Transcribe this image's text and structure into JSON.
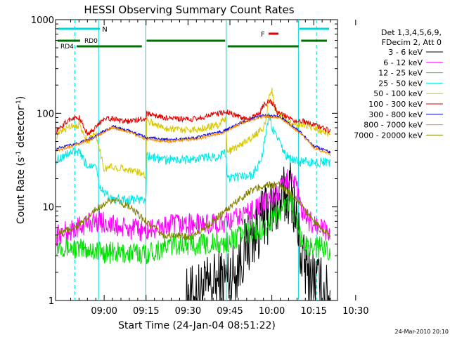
{
  "chart_data": {
    "type": "line",
    "title": "HESSI Observing Summary Count Rates",
    "xlabel": "Start Time (24-Jan-04 08:51:22)",
    "ylabel_main": "Count Rate (s",
    "ylabel_sup1": "-1",
    "ylabel_mid": " detector",
    "ylabel_sup2": "-1",
    "ylabel_end": ")",
    "y_scale": "log",
    "ylim": [
      1,
      1000
    ],
    "xlim_minutes": [
      -8.4,
      92.5
    ],
    "x_ticks": [
      {
        "minutes": 9,
        "label": "09:00"
      },
      {
        "minutes": 24,
        "label": "09:15"
      },
      {
        "minutes": 39,
        "label": "09:30"
      },
      {
        "minutes": 54,
        "label": "09:45"
      },
      {
        "minutes": 69,
        "label": "10:00"
      },
      {
        "minutes": 84,
        "label": "10:15"
      },
      {
        "minutes": 99,
        "label": "10:30"
      }
    ],
    "y_ticks": [
      {
        "value": 1,
        "label": "1"
      },
      {
        "value": 10,
        "label": "10"
      },
      {
        "value": 100,
        "label": "100"
      },
      {
        "value": 1000,
        "label": "1000"
      }
    ],
    "legend_header": [
      "Det 1,3,4,5,6,9,",
      "FDecim 2, Att 0"
    ],
    "legend_position": "right",
    "timestamp": "24-Mar-2010 20:10",
    "flags": [
      {
        "label": "N",
        "color": "#00d8d8"
      },
      {
        "label": "F",
        "color": "#e00000"
      },
      {
        "label": "RD0",
        "color": "#007000"
      },
      {
        "label": "RD4",
        "color": "#007000"
      }
    ],
    "series": [
      {
        "name": "3 - 6 keV",
        "color": "#000000"
      },
      {
        "name": "6 - 12 keV",
        "color": "#ff00ff"
      },
      {
        "name": "12 - 25 keV",
        "color": "#00e000"
      },
      {
        "name": "25 - 50 keV",
        "color": "#00e8e8"
      },
      {
        "name": "50 - 100 keV",
        "color": "#d8c800"
      },
      {
        "name": "100 - 300 keV",
        "color": "#e00000"
      },
      {
        "name": "300 - 800 keV",
        "color": "#0000e0"
      },
      {
        "name": "800 - 7000 keV",
        "color": "#ff8c00"
      },
      {
        "name": "7000 - 20000 keV",
        "color": "#808000"
      }
    ],
    "night_intervals_minutes": [
      [
        7.0,
        23.9
      ],
      [
        52.7,
        78.5
      ]
    ],
    "series_key_points": {
      "100 - 300 keV": [
        [
          -8,
          65
        ],
        [
          -3,
          88
        ],
        [
          0,
          90
        ],
        [
          3,
          60
        ],
        [
          6,
          70
        ],
        [
          9,
          90
        ],
        [
          18,
          82
        ],
        [
          24,
          88
        ],
        [
          24.2,
          100
        ],
        [
          30,
          90
        ],
        [
          40,
          85
        ],
        [
          50,
          100
        ],
        [
          52.5,
          105
        ],
        [
          60,
          85
        ],
        [
          64,
          95
        ],
        [
          66,
          120
        ],
        [
          68,
          135
        ],
        [
          70,
          120
        ],
        [
          71,
          100
        ],
        [
          73,
          95
        ],
        [
          75,
          90
        ],
        [
          78.3,
          80
        ],
        [
          80,
          83
        ],
        [
          90,
          65
        ]
      ],
      "50 - 100 keV": [
        [
          -8,
          58
        ],
        [
          -3,
          74
        ],
        [
          0,
          75
        ],
        [
          3,
          50
        ],
        [
          6,
          62
        ],
        [
          9,
          25
        ],
        [
          11,
          27
        ],
        [
          18,
          25
        ],
        [
          24,
          22
        ],
        [
          24.2,
          85
        ],
        [
          30,
          70
        ],
        [
          40,
          66
        ],
        [
          50,
          75
        ],
        [
          52.5,
          90
        ],
        [
          53,
          38
        ],
        [
          62,
          55
        ],
        [
          66,
          70
        ],
        [
          67,
          90
        ],
        [
          68,
          145
        ],
        [
          69,
          180
        ],
        [
          70,
          110
        ],
        [
          74,
          85
        ],
        [
          78.3,
          75
        ],
        [
          80,
          78
        ],
        [
          90,
          58
        ]
      ],
      "25 - 50 keV": [
        [
          -8,
          32
        ],
        [
          -3,
          38
        ],
        [
          0,
          38
        ],
        [
          3,
          27
        ],
        [
          6,
          30
        ],
        [
          7,
          18
        ],
        [
          9,
          14
        ],
        [
          12,
          12
        ],
        [
          18,
          12
        ],
        [
          24,
          12
        ],
        [
          24.2,
          35
        ],
        [
          30,
          32
        ],
        [
          40,
          32
        ],
        [
          50,
          35
        ],
        [
          52.5,
          38
        ],
        [
          53,
          20
        ],
        [
          62,
          22
        ],
        [
          65,
          30
        ],
        [
          67,
          60
        ],
        [
          68,
          100
        ],
        [
          69,
          70
        ],
        [
          71,
          55
        ],
        [
          74,
          35
        ],
        [
          78.3,
          30
        ],
        [
          80,
          30
        ],
        [
          90,
          30
        ]
      ],
      "300 - 800 keV": [
        [
          -8,
          42
        ],
        [
          0,
          48
        ],
        [
          5,
          55
        ],
        [
          12,
          72
        ],
        [
          18,
          65
        ],
        [
          24,
          55
        ],
        [
          32,
          52
        ],
        [
          42,
          55
        ],
        [
          52,
          65
        ],
        [
          58,
          80
        ],
        [
          66,
          95
        ],
        [
          72,
          92
        ],
        [
          80,
          60
        ],
        [
          84,
          45
        ],
        [
          90,
          38
        ]
      ],
      "800 - 7000 keV": [
        [
          -8,
          40
        ],
        [
          0,
          47
        ],
        [
          5,
          54
        ],
        [
          12,
          70
        ],
        [
          18,
          63
        ],
        [
          24,
          53
        ],
        [
          32,
          50
        ],
        [
          42,
          53
        ],
        [
          52,
          63
        ],
        [
          58,
          78
        ],
        [
          66,
          93
        ],
        [
          72,
          90
        ],
        [
          80,
          58
        ],
        [
          84,
          43
        ],
        [
          90,
          36
        ]
      ],
      "7000 - 20000 keV": [
        [
          -8,
          5
        ],
        [
          -2,
          6
        ],
        [
          2,
          7
        ],
        [
          7,
          10
        ],
        [
          12,
          12
        ],
        [
          18,
          10
        ],
        [
          24,
          7
        ],
        [
          30,
          5
        ],
        [
          40,
          4.8
        ],
        [
          48,
          7
        ],
        [
          54,
          10
        ],
        [
          60,
          14
        ],
        [
          66,
          17
        ],
        [
          72,
          17
        ],
        [
          78,
          12
        ],
        [
          84,
          7
        ],
        [
          90,
          5
        ]
      ],
      "6 - 12 keV": [
        [
          -8,
          5
        ],
        [
          0,
          6
        ],
        [
          4,
          7
        ],
        [
          8,
          7
        ],
        [
          14,
          6
        ],
        [
          24,
          5.5
        ],
        [
          34,
          6.5
        ],
        [
          44,
          6.5
        ],
        [
          52,
          6.5
        ],
        [
          58,
          8
        ],
        [
          64,
          10
        ],
        [
          70,
          13
        ],
        [
          74,
          18
        ],
        [
          76,
          24
        ],
        [
          78,
          15
        ],
        [
          80,
          8
        ],
        [
          90,
          5
        ]
      ],
      "12 - 25 keV": [
        [
          -8,
          4
        ],
        [
          0,
          3.5
        ],
        [
          4,
          3.5
        ],
        [
          8,
          3.3
        ],
        [
          14,
          3.2
        ],
        [
          24,
          3.2
        ],
        [
          34,
          4
        ],
        [
          44,
          4
        ],
        [
          52,
          4
        ],
        [
          58,
          5
        ],
        [
          66,
          6
        ],
        [
          72,
          9
        ],
        [
          76,
          12
        ],
        [
          78,
          6
        ],
        [
          80,
          4
        ],
        [
          90,
          3.5
        ]
      ],
      "3 - 6 keV": [
        [
          38,
          1
        ],
        [
          56,
          2
        ],
        [
          60,
          4
        ],
        [
          64,
          6
        ],
        [
          68,
          9
        ],
        [
          72,
          11
        ],
        [
          74,
          13
        ],
        [
          76,
          16
        ],
        [
          78,
          6
        ],
        [
          80,
          2.5
        ],
        [
          90,
          1
        ]
      ]
    }
  }
}
